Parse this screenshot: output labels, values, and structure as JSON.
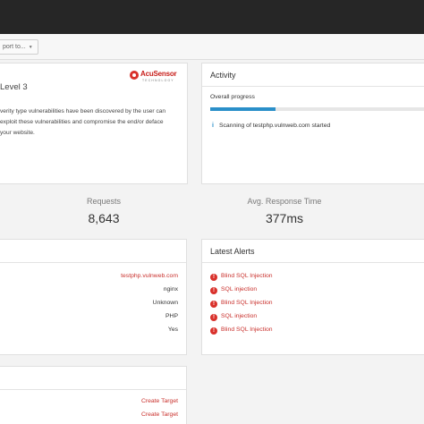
{
  "toolbar": {
    "export_label": "port to...",
    "export_caret": "▼"
  },
  "threat": {
    "level_text": "Level 3",
    "description": "verity type vulnerabilities have been discovered by the user can exploit these vulnerabilities and compromise the end/or deface your website.",
    "logo": {
      "word": "AcuSensor",
      "tagline": "TECHNOLOGY"
    }
  },
  "activity": {
    "title": "Activity",
    "progress_label": "Overall progress",
    "progress_fraction": 0.3,
    "progress_color": "#2a8fc9",
    "items": [
      {
        "icon": "info-icon",
        "text": "Scanning of testphp.vulnweb.com started"
      }
    ]
  },
  "stats": {
    "requests": {
      "label": "Requests",
      "value": "8,643"
    },
    "response_time": {
      "label": "Avg. Response Time",
      "value": "377ms"
    }
  },
  "target_info": {
    "values": [
      "testphp.vulnweb.com",
      "nginx",
      "Unknown",
      "PHP",
      "Yes"
    ]
  },
  "alerts": {
    "title": "Latest Alerts",
    "items": [
      "Blind SQL Injection",
      "SQL injection",
      "Blind SQL Injection",
      "SQL injection",
      "Blind SQL Injection"
    ],
    "severity_glyph": "!",
    "severity_color": "#d9312b"
  },
  "bottom": {
    "links": [
      "Create Target",
      "Create Target"
    ]
  }
}
